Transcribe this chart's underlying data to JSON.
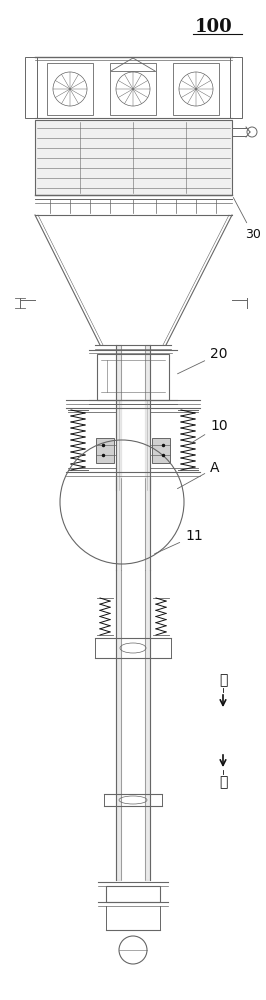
{
  "bg_color": "#ffffff",
  "lc": "#666666",
  "dc": "#111111",
  "gc": "#aaaaaa",
  "label_100": "100",
  "label_30": "30",
  "label_20": "20",
  "label_10": "10",
  "label_A": "A",
  "label_11": "11",
  "label_up": "上",
  "label_down": "下",
  "fig_width": 2.66,
  "fig_height": 10.0,
  "dpi": 100
}
